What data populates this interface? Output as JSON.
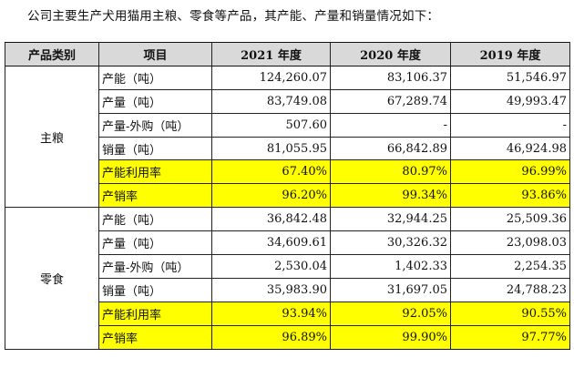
{
  "intro": "公司主要生产犬用猫用主粮、零食等产品，其产能、产量和销量情况如下：",
  "headers": [
    "产品类别",
    "项目",
    "2021 年度",
    "2020 年度",
    "2019 年度"
  ],
  "groups": [
    {
      "category": "主粮",
      "rows": [
        {
          "item": "产能（吨）",
          "v2021": "124,260.07",
          "v2020": "83,106.37",
          "v2019": "51,546.97",
          "highlight": false
        },
        {
          "item": "产量（吨）",
          "v2021": "83,749.08",
          "v2020": "67,289.74",
          "v2019": "49,993.47",
          "highlight": false
        },
        {
          "item": "产量-外购（吨）",
          "v2021": "507.60",
          "v2020": "-",
          "v2019": "-",
          "highlight": false
        },
        {
          "item": "销量（吨）",
          "v2021": "81,055.95",
          "v2020": "66,842.89",
          "v2019": "46,924.98",
          "highlight": false
        },
        {
          "item": "产能利用率",
          "v2021": "67.40%",
          "v2020": "80.97%",
          "v2019": "96.99%",
          "highlight": true
        },
        {
          "item": "产销率",
          "v2021": "96.20%",
          "v2020": "99.34%",
          "v2019": "93.86%",
          "highlight": true
        }
      ]
    },
    {
      "category": "零食",
      "rows": [
        {
          "item": "产能（吨）",
          "v2021": "36,842.48",
          "v2020": "32,944.25",
          "v2019": "25,509.36",
          "highlight": false
        },
        {
          "item": "产量（吨）",
          "v2021": "34,609.61",
          "v2020": "30,326.32",
          "v2019": "23,098.03",
          "highlight": false
        },
        {
          "item": "产量-外购（吨）",
          "v2021": "2,530.04",
          "v2020": "1,402.33",
          "v2019": "2,254.35",
          "highlight": false
        },
        {
          "item": "销量（吨）",
          "v2021": "35,983.90",
          "v2020": "31,697.05",
          "v2019": "24,788.23",
          "highlight": false
        },
        {
          "item": "产能利用率",
          "v2021": "93.94%",
          "v2020": "92.05%",
          "v2019": "90.55%",
          "highlight": true
        },
        {
          "item": "产销率",
          "v2021": "96.89%",
          "v2020": "99.90%",
          "v2019": "97.77%",
          "highlight": true
        }
      ]
    }
  ],
  "colors": {
    "highlight": "#ffff00",
    "header_bg": "#d9d9d9"
  }
}
